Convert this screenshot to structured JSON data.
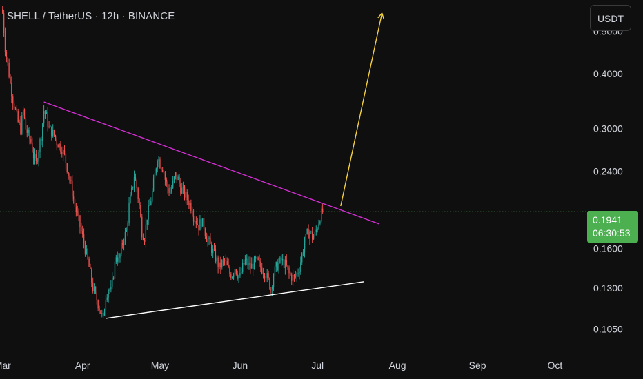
{
  "header": {
    "title": "SHELL / TetherUS · 12h · BINANCE",
    "currency_button": "USDT"
  },
  "price_badge": {
    "price": "0.1941",
    "countdown": "06:30:53",
    "color": "#4caf50"
  },
  "colors": {
    "background": "#0f0f0f",
    "up": "#26a69a",
    "down": "#ef5350",
    "resistance_line": "#d02ed0",
    "support_line": "#ffffff",
    "projection_arrow": "#f5d142",
    "last_price_line": "#4caf50",
    "axis_text": "#d1d4dc"
  },
  "chart_data": {
    "type": "candlestick",
    "symbol": "SHELL / TetherUS",
    "interval": "12h",
    "exchange": "BINANCE",
    "y_scale": "log",
    "ylim": [
      0.095,
      0.56
    ],
    "y_ticks": [
      {
        "value": 0.5,
        "label": "0.5000"
      },
      {
        "value": 0.4,
        "label": "0.4000"
      },
      {
        "value": 0.3,
        "label": "0.3000"
      },
      {
        "value": 0.24,
        "label": "0.2400"
      },
      {
        "value": 0.16,
        "label": "0.1600"
      },
      {
        "value": 0.13,
        "label": "0.1300"
      },
      {
        "value": 0.105,
        "label": "0.1050"
      }
    ],
    "x_ticks": [
      "Mar",
      "Apr",
      "May",
      "Jun",
      "Jul",
      "Aug",
      "Sep",
      "Oct"
    ],
    "x_tick_days": [
      0,
      31,
      61,
      92,
      122,
      153,
      184,
      214
    ],
    "x_range_days": [
      -1,
      223
    ],
    "last_price": 0.1941,
    "close_path": [
      [
        0,
        0.55
      ],
      [
        1,
        0.46
      ],
      [
        2,
        0.42
      ],
      [
        3,
        0.38
      ],
      [
        4,
        0.35
      ],
      [
        5,
        0.33
      ],
      [
        6,
        0.31
      ],
      [
        7,
        0.3
      ],
      [
        8,
        0.33
      ],
      [
        9,
        0.3
      ],
      [
        10,
        0.29
      ],
      [
        11,
        0.28
      ],
      [
        12,
        0.26
      ],
      [
        13,
        0.25
      ],
      [
        14,
        0.27
      ],
      [
        15,
        0.29
      ],
      [
        16,
        0.33
      ],
      [
        17,
        0.32
      ],
      [
        18,
        0.3
      ],
      [
        19,
        0.295
      ],
      [
        20,
        0.29
      ],
      [
        21,
        0.28
      ],
      [
        22,
        0.275
      ],
      [
        23,
        0.27
      ],
      [
        24,
        0.26
      ],
      [
        25,
        0.245
      ],
      [
        26,
        0.23
      ],
      [
        27,
        0.215
      ],
      [
        28,
        0.2
      ],
      [
        29,
        0.19
      ],
      [
        30,
        0.18
      ],
      [
        31,
        0.17
      ],
      [
        32,
        0.16
      ],
      [
        33,
        0.15
      ],
      [
        34,
        0.14
      ],
      [
        35,
        0.13
      ],
      [
        36,
        0.125
      ],
      [
        37,
        0.12
      ],
      [
        38,
        0.115
      ],
      [
        39,
        0.11
      ],
      [
        40,
        0.125
      ],
      [
        41,
        0.13
      ],
      [
        42,
        0.128
      ],
      [
        43,
        0.14
      ],
      [
        44,
        0.155
      ],
      [
        45,
        0.15
      ],
      [
        46,
        0.16
      ],
      [
        47,
        0.17
      ],
      [
        48,
        0.175
      ],
      [
        49,
        0.2
      ],
      [
        50,
        0.215
      ],
      [
        51,
        0.235
      ],
      [
        52,
        0.22
      ],
      [
        53,
        0.2
      ],
      [
        54,
        0.175
      ],
      [
        55,
        0.17
      ],
      [
        56,
        0.19
      ],
      [
        57,
        0.2
      ],
      [
        58,
        0.215
      ],
      [
        59,
        0.235
      ],
      [
        60,
        0.26
      ],
      [
        61,
        0.25
      ],
      [
        62,
        0.245
      ],
      [
        63,
        0.23
      ],
      [
        64,
        0.22
      ],
      [
        65,
        0.215
      ],
      [
        66,
        0.225
      ],
      [
        67,
        0.235
      ],
      [
        68,
        0.23
      ],
      [
        69,
        0.22
      ],
      [
        70,
        0.215
      ],
      [
        71,
        0.21
      ],
      [
        72,
        0.205
      ],
      [
        73,
        0.2
      ],
      [
        74,
        0.19
      ],
      [
        75,
        0.185
      ],
      [
        76,
        0.18
      ],
      [
        77,
        0.185
      ],
      [
        78,
        0.18
      ],
      [
        79,
        0.17
      ],
      [
        80,
        0.165
      ],
      [
        81,
        0.16
      ],
      [
        82,
        0.155
      ],
      [
        83,
        0.15
      ],
      [
        84,
        0.145
      ],
      [
        85,
        0.148
      ],
      [
        86,
        0.15
      ],
      [
        87,
        0.145
      ],
      [
        88,
        0.14
      ],
      [
        89,
        0.14
      ],
      [
        90,
        0.145
      ],
      [
        91,
        0.14
      ],
      [
        92,
        0.138
      ],
      [
        93,
        0.145
      ],
      [
        94,
        0.15
      ],
      [
        95,
        0.148
      ],
      [
        96,
        0.145
      ],
      [
        97,
        0.147
      ],
      [
        98,
        0.15
      ],
      [
        99,
        0.148
      ],
      [
        100,
        0.145
      ],
      [
        101,
        0.143
      ],
      [
        102,
        0.14
      ],
      [
        103,
        0.135
      ],
      [
        104,
        0.13
      ],
      [
        105,
        0.14
      ],
      [
        106,
        0.145
      ],
      [
        107,
        0.148
      ],
      [
        108,
        0.15
      ],
      [
        109,
        0.148
      ],
      [
        110,
        0.145
      ],
      [
        111,
        0.14
      ],
      [
        112,
        0.138
      ],
      [
        113,
        0.137
      ],
      [
        114,
        0.14
      ],
      [
        115,
        0.145
      ],
      [
        116,
        0.155
      ],
      [
        117,
        0.165
      ],
      [
        118,
        0.172
      ],
      [
        119,
        0.175
      ],
      [
        120,
        0.17
      ],
      [
        121,
        0.172
      ],
      [
        122,
        0.18
      ],
      [
        123,
        0.19
      ],
      [
        124,
        0.1941
      ]
    ],
    "annotations": [
      {
        "name": "resistance-line",
        "points": [
          [
            16,
            0.345
          ],
          [
            146,
            0.182
          ]
        ]
      },
      {
        "name": "support-line",
        "points": [
          [
            40,
            0.111
          ],
          [
            140,
            0.1345
          ]
        ]
      },
      {
        "name": "projection-arrow",
        "points": [
          [
            131,
            0.2
          ],
          [
            147,
            0.55
          ]
        ]
      }
    ]
  }
}
